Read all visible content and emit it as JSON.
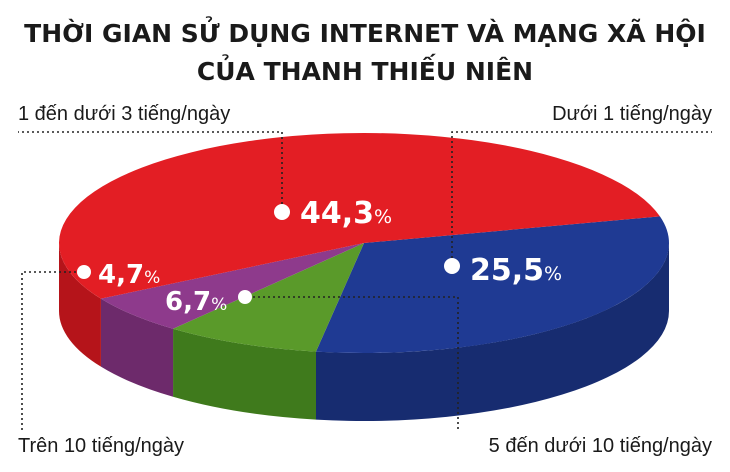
{
  "title_line1": "THỜI GIAN SỬ DỤNG INTERNET VÀ MẠNG XÃ HỘI",
  "title_line2": "CỦA THANH THIẾU NIÊN",
  "chart_data": {
    "type": "pie",
    "title": "THỜI GIAN SỬ DỤNG INTERNET VÀ MẠNG XÃ HỘI CỦA THANH THIẾU NIÊN",
    "percent_symbol": "%",
    "slices": [
      {
        "label": "Dưới 1 tiếng/ngày",
        "value": 25.5,
        "value_text": "25,5",
        "color": "#1f3a93",
        "side": "#172c70"
      },
      {
        "label": "5 đến dưới 10 tiếng/ngày",
        "value": 6.7,
        "value_text": "6,7",
        "color": "#5a9a2a",
        "side": "#3f7a1c"
      },
      {
        "label": "Trên 10 tiếng/ngày",
        "value": 4.7,
        "value_text": "4,7",
        "color": "#8e3a8c",
        "side": "#6d2a6b"
      },
      {
        "label": "1 đến dưới 3 tiếng/ngày",
        "value": 44.3,
        "value_text": "44,3",
        "color": "#e31e24",
        "side": "#b5141a"
      }
    ]
  }
}
